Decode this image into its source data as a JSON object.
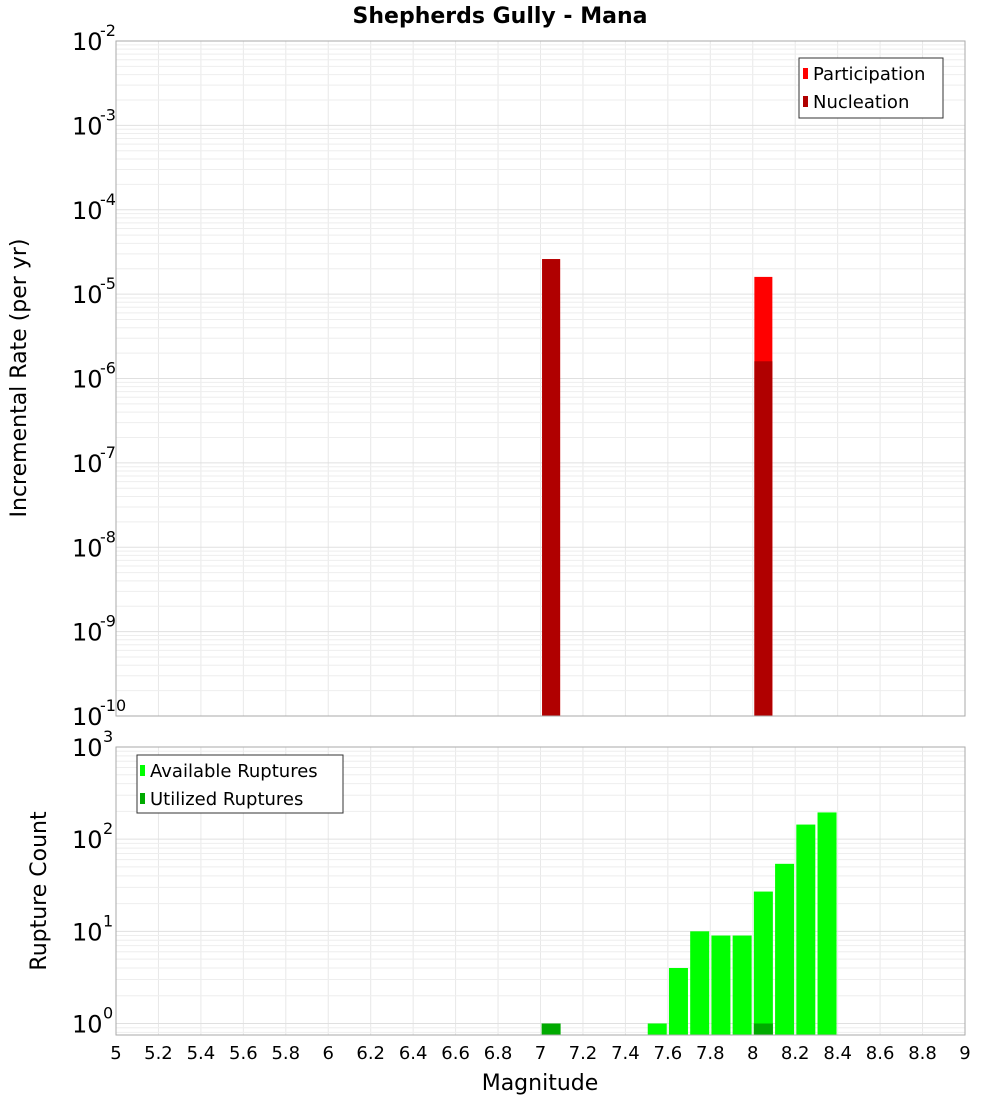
{
  "chart_data": [
    {
      "type": "bar",
      "title": "Shepherds Gully - Mana",
      "xlabel": "Magnitude",
      "ylabel": "Incremental Rate (per yr)",
      "yscale": "log",
      "ylim": [
        1e-10,
        0.01
      ],
      "xlim": [
        5,
        9
      ],
      "grid": true,
      "legend_position": "top-right",
      "legend": [
        "Participation",
        "Nucleation"
      ],
      "x": [
        7.05,
        8.05
      ],
      "series": [
        {
          "name": "Participation",
          "color": "#ff0000",
          "values": [
            2.6e-05,
            1.6e-05
          ]
        },
        {
          "name": "Nucleation",
          "color": "#b00000",
          "values": [
            2.6e-05,
            1.6e-06
          ]
        }
      ],
      "ytick_exponents": [
        -2,
        -3,
        -4,
        -5,
        -6,
        -7,
        -8,
        -9,
        -10
      ]
    },
    {
      "type": "bar",
      "title": "",
      "xlabel": "Magnitude",
      "ylabel": "Rupture Count",
      "yscale": "log",
      "ylim": [
        0.75,
        1000
      ],
      "xlim": [
        5,
        9
      ],
      "grid": true,
      "legend_position": "top-left",
      "legend": [
        "Available Ruptures",
        "Utilized Ruptures"
      ],
      "series": [
        {
          "name": "Available Ruptures",
          "color": "#00ff00",
          "x": [
            7.55,
            7.65,
            7.75,
            7.85,
            7.95,
            8.05,
            8.15,
            8.25,
            8.35
          ],
          "values": [
            1,
            4,
            10,
            9,
            9,
            27,
            54,
            144,
            195
          ]
        },
        {
          "name": "Utilized Ruptures",
          "color": "#00aa00",
          "x": [
            7.05,
            8.05
          ],
          "values": [
            1,
            1
          ]
        }
      ],
      "ytick_exponents": [
        3,
        2,
        1,
        0
      ],
      "xticks": [
        "5",
        "5.2",
        "5.4",
        "5.6",
        "5.8",
        "6",
        "6.2",
        "6.4",
        "6.6",
        "6.8",
        "7",
        "7.2",
        "7.4",
        "7.6",
        "7.8",
        "8",
        "8.2",
        "8.4",
        "8.6",
        "8.8",
        "9"
      ]
    }
  ],
  "labels": {
    "title": "Shepherds Gully - Mana",
    "top_ylabel": "Incremental Rate (per yr)",
    "bottom_ylabel": "Rupture Count",
    "xlabel": "Magnitude",
    "legend_top": [
      "Participation",
      "Nucleation"
    ],
    "legend_bottom": [
      "Available Ruptures",
      "Utilized Ruptures"
    ]
  }
}
